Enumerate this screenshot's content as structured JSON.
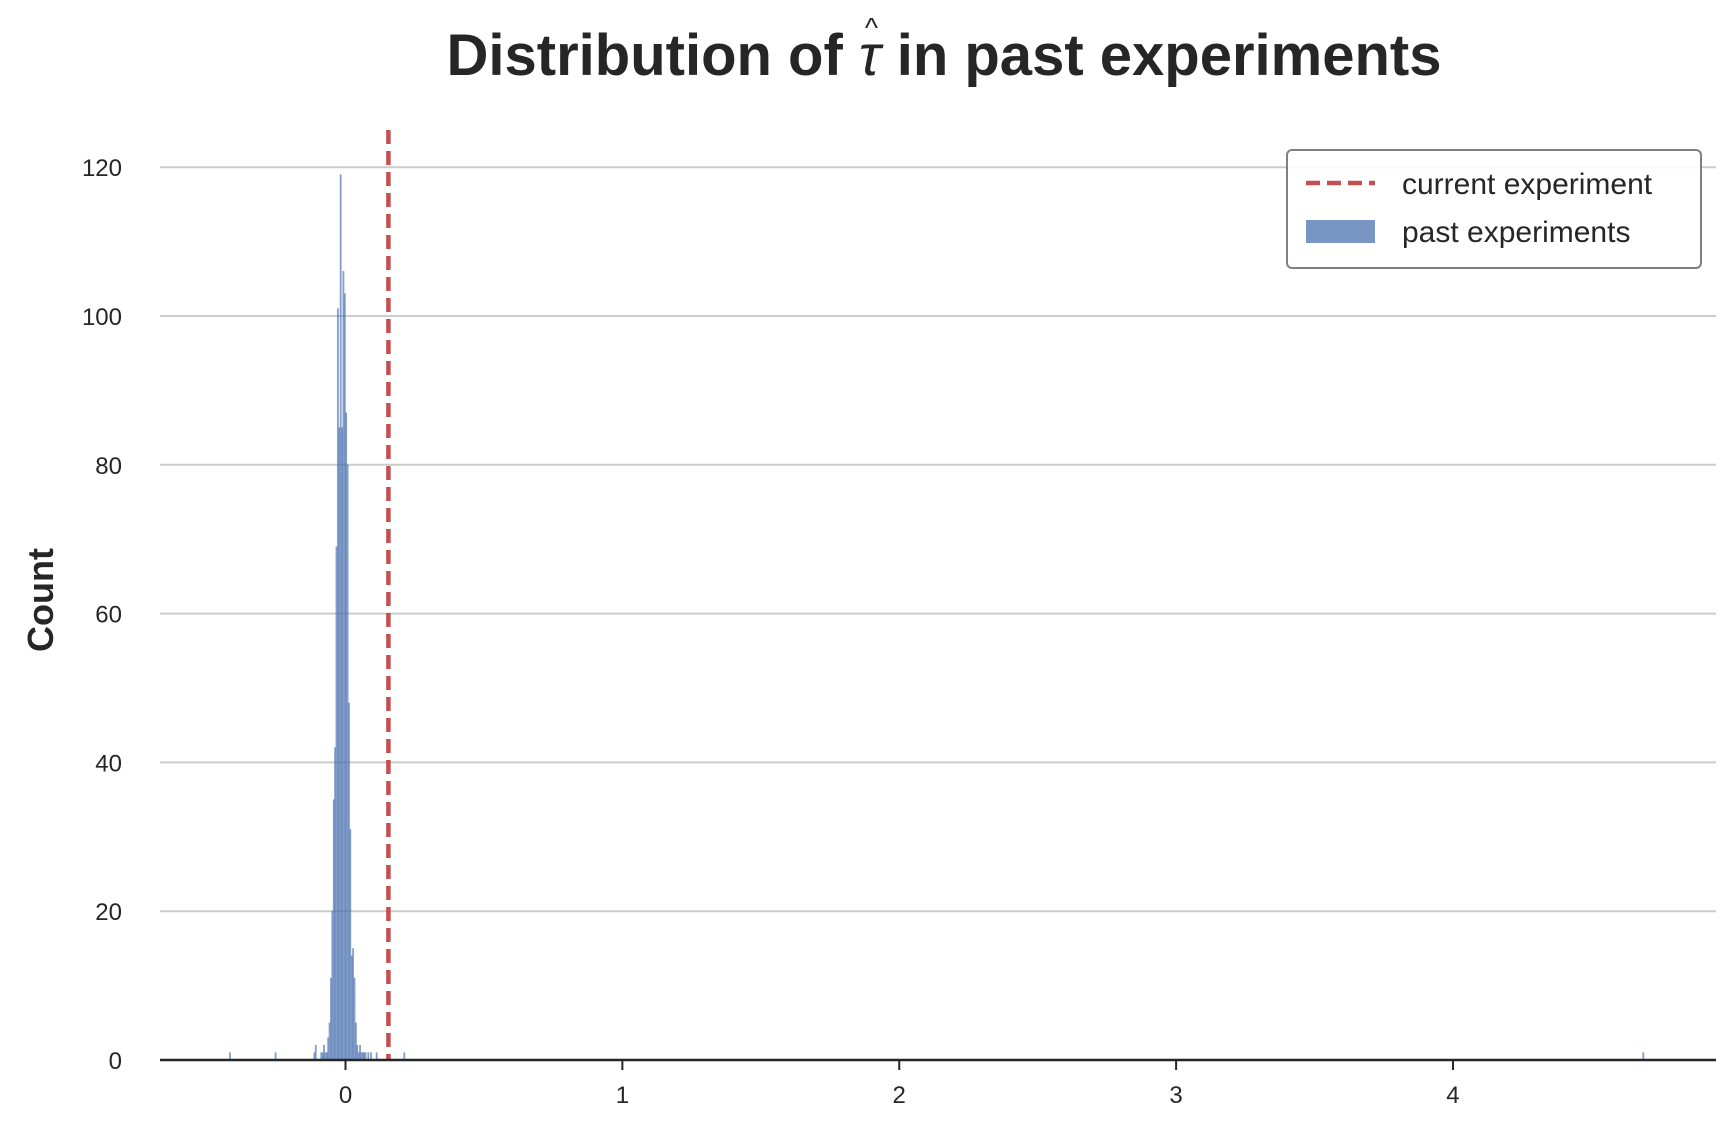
{
  "chart_data": {
    "type": "bar",
    "title_prefix": "Distribution of ",
    "title_symbol": "τ",
    "title_hat": "^",
    "title_suffix": " in past experiments",
    "xlabel": "",
    "ylabel": "Count",
    "xlim": [
      -0.67,
      4.95
    ],
    "ylim": [
      0,
      125
    ],
    "xticks": [
      0,
      1,
      2,
      3,
      4
    ],
    "xtick_labels": [
      "0",
      "1",
      "2",
      "3",
      "4"
    ],
    "yticks": [
      0,
      20,
      40,
      60,
      80,
      100,
      120
    ],
    "ytick_labels": [
      "0",
      "20",
      "40",
      "60",
      "80",
      "100",
      "120"
    ],
    "grid": "horizontal",
    "legend_position": "top-right",
    "colors": {
      "hist": "#4c72b0",
      "line": "#c44e52",
      "grid": "#cccccc",
      "axis": "#262626"
    },
    "reference_line": {
      "name": "current experiment",
      "x": 0.155
    },
    "series": [
      {
        "name": "past experiments",
        "bin_width": 0.005,
        "bin_starts": [
          -0.42,
          -0.255,
          -0.115,
          -0.11,
          -0.09,
          -0.085,
          -0.08,
          -0.075,
          -0.07,
          -0.065,
          -0.06,
          -0.055,
          -0.05,
          -0.045,
          -0.04,
          -0.035,
          -0.03,
          -0.025,
          -0.02,
          -0.015,
          -0.01,
          -0.005,
          0.0,
          0.005,
          0.01,
          0.015,
          0.02,
          0.025,
          0.03,
          0.035,
          0.04,
          0.045,
          0.05,
          0.055,
          0.06,
          0.065,
          0.07,
          0.08,
          0.09,
          0.11,
          0.21,
          4.685
        ],
        "counts": [
          1,
          1,
          1,
          2,
          1,
          1,
          2,
          1,
          1,
          3,
          5,
          11,
          20,
          35,
          42,
          69,
          101,
          85,
          119,
          85,
          106,
          103,
          87,
          80,
          48,
          31,
          14,
          15,
          11,
          5,
          2,
          1,
          2,
          1,
          1,
          1,
          1,
          1,
          1,
          1,
          1,
          1
        ]
      }
    ]
  }
}
